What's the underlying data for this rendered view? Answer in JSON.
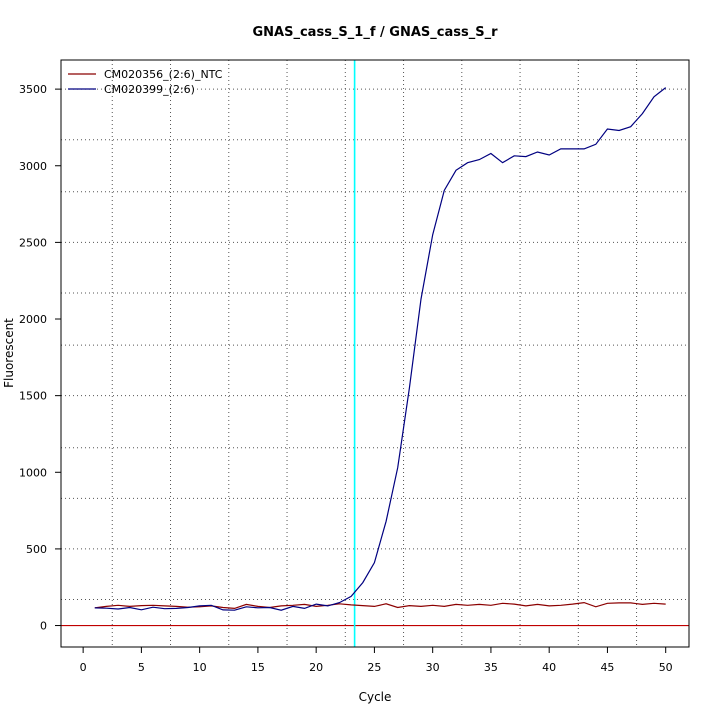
{
  "chart_data": {
    "type": "line",
    "title": "GNAS_cass_S_1_f / GNAS_cass_S_r",
    "xlabel": "Cycle",
    "ylabel": "Fluorescent",
    "xlim": [
      -1.9,
      52
    ],
    "ylim": [
      -140,
      3690
    ],
    "x_ticks": [
      0,
      5,
      10,
      15,
      20,
      25,
      30,
      35,
      40,
      45,
      50
    ],
    "y_ticks": [
      0,
      500,
      1000,
      1500,
      2000,
      2500,
      3000,
      3500
    ],
    "grid_x": [
      2.5,
      7.5,
      12.5,
      17.5,
      22.5,
      27.5,
      32.5,
      37.5,
      42.5,
      47.5
    ],
    "grid_y": [
      170,
      500,
      830,
      1160,
      1500,
      1830,
      2170,
      2500,
      2830,
      3170,
      3500
    ],
    "grid": true,
    "legend_position": "top-left",
    "threshold": {
      "x": 23.3,
      "color": "#00ffff"
    },
    "baseline": {
      "y": 0,
      "color": "#c00000"
    },
    "x": [
      1,
      2,
      3,
      4,
      5,
      6,
      7,
      8,
      9,
      10,
      11,
      12,
      13,
      14,
      15,
      16,
      17,
      18,
      19,
      20,
      21,
      22,
      23,
      24,
      25,
      26,
      27,
      28,
      29,
      30,
      31,
      32,
      33,
      34,
      35,
      36,
      37,
      38,
      39,
      40,
      41,
      42,
      43,
      44,
      45,
      46,
      47,
      48,
      49,
      50
    ],
    "series": [
      {
        "name": "CM020356_(2:6)_NTC",
        "color": "#8b0000",
        "values": [
          115,
          125,
          132,
          125,
          130,
          132,
          128,
          125,
          120,
          122,
          128,
          118,
          112,
          138,
          125,
          118,
          128,
          132,
          138,
          125,
          132,
          142,
          135,
          130,
          125,
          142,
          118,
          130,
          125,
          132,
          125,
          138,
          132,
          138,
          132,
          145,
          140,
          128,
          138,
          128,
          132,
          140,
          150,
          122,
          145,
          148,
          148,
          138,
          145,
          140
        ]
      },
      {
        "name": "CM020399_(2:6)",
        "color": "#000080",
        "values": [
          115,
          113,
          108,
          118,
          103,
          120,
          110,
          112,
          118,
          128,
          132,
          102,
          100,
          122,
          116,
          118,
          100,
          125,
          112,
          140,
          128,
          150,
          190,
          280,
          410,
          680,
          1030,
          1550,
          2130,
          2550,
          2840,
          2970,
          3020,
          3040,
          3080,
          3020,
          3065,
          3060,
          3090,
          3070,
          3110,
          3110,
          3110,
          3140,
          3240,
          3230,
          3255,
          3340,
          3450,
          3510
        ]
      }
    ]
  }
}
